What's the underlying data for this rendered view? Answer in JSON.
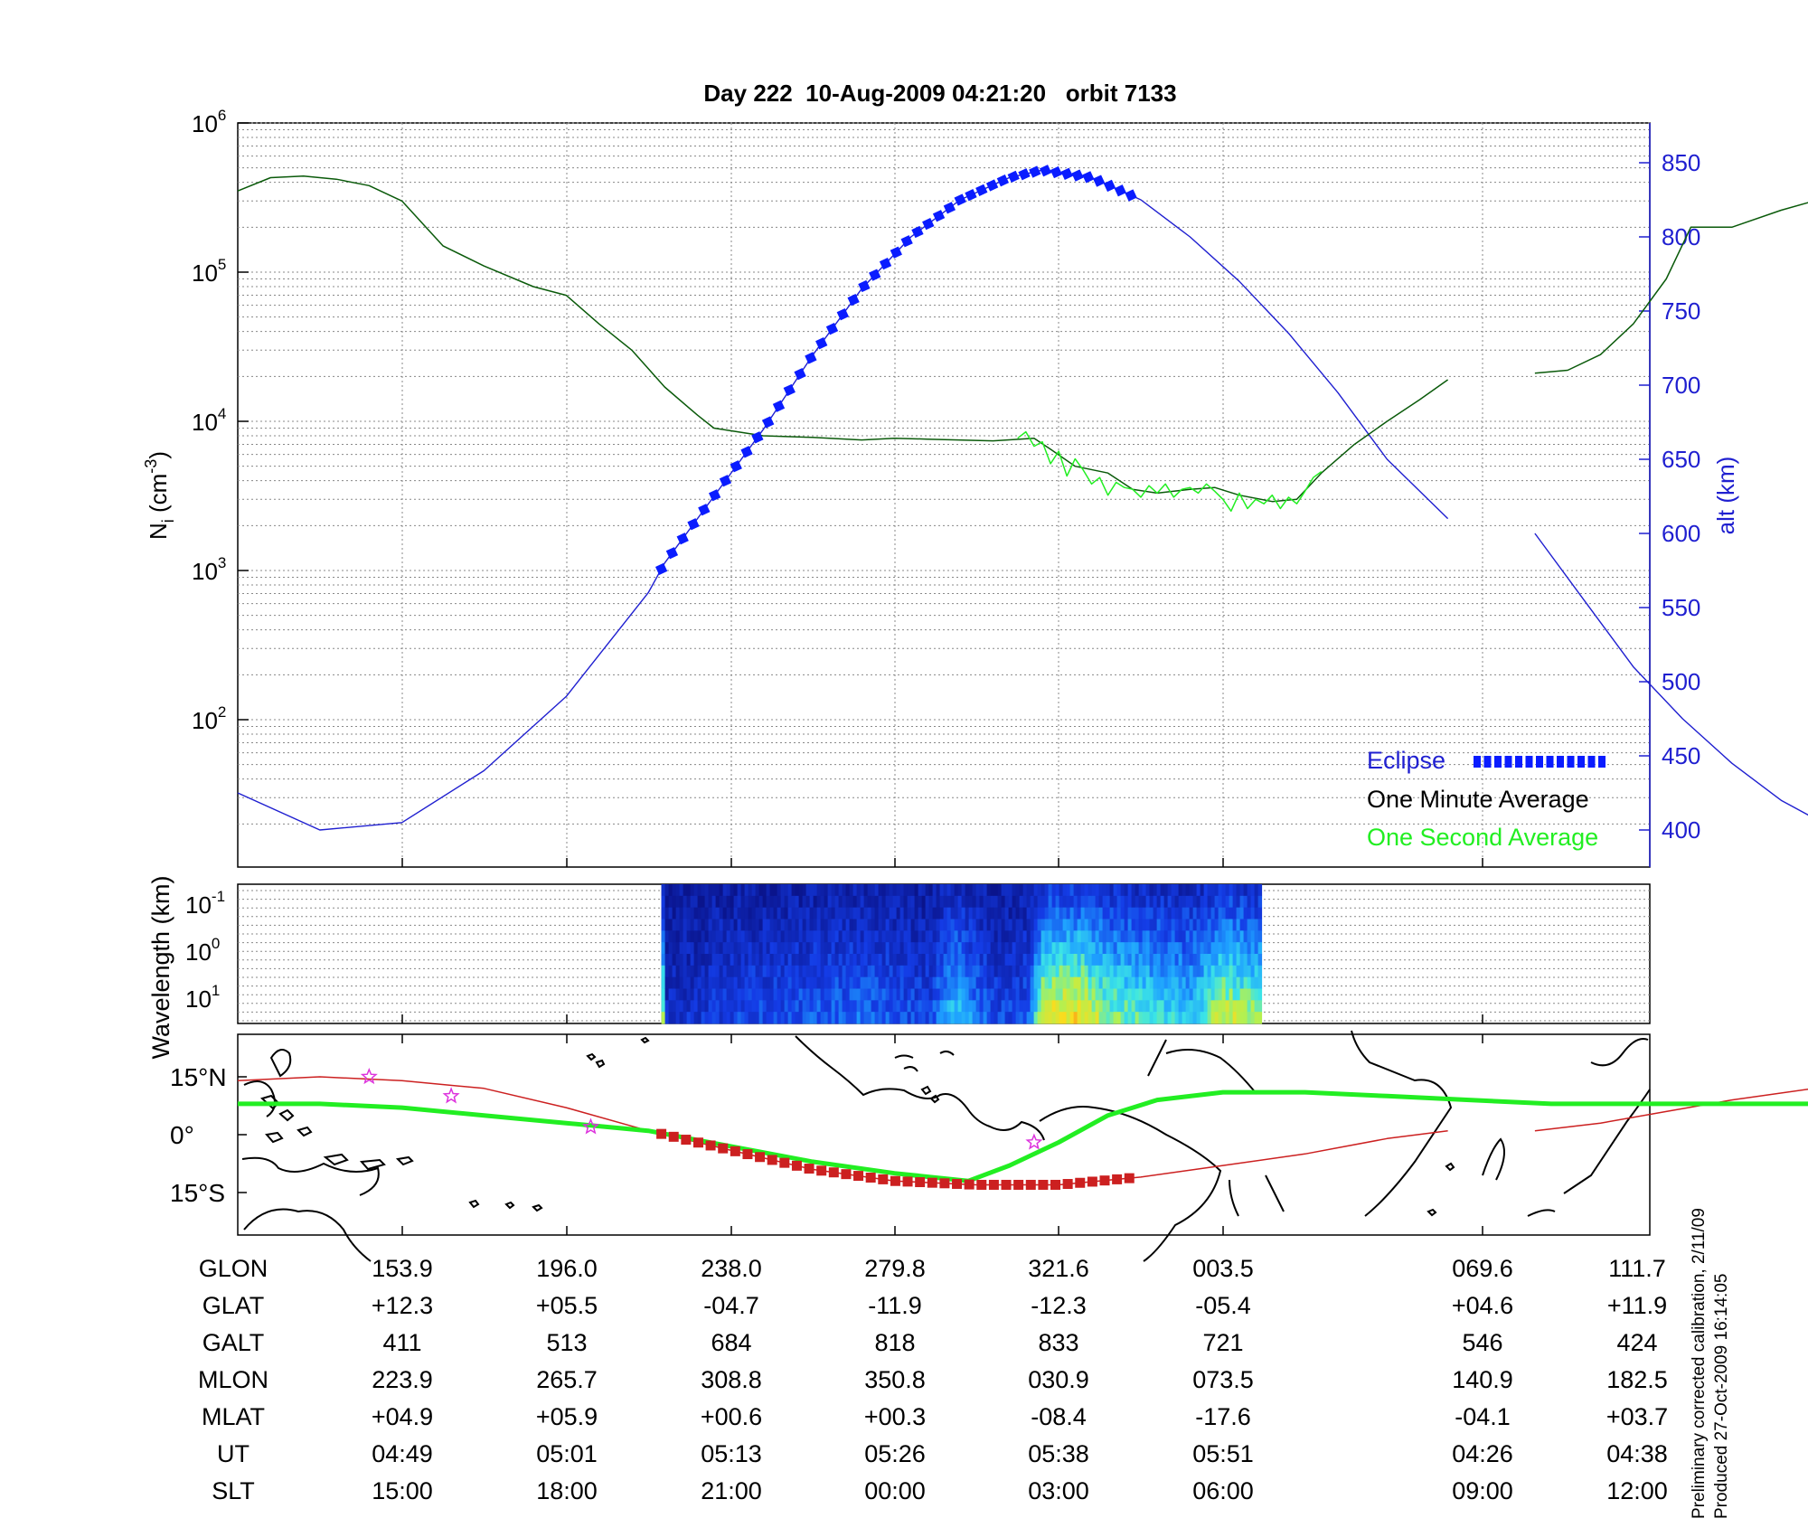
{
  "title": "Day 222  10-Aug-2009 04:21:20   orbit 7133",
  "colors": {
    "altitude": "#1f1fd0",
    "eclipse": "#0a1cff",
    "one_minute": "#0a5a0a",
    "one_second": "#22ee22",
    "orbit_track": "#cc2020",
    "magnetic_equator": "#22ee22",
    "grid": "#888888"
  },
  "chart_data": [
    {
      "type": "line",
      "name": "density-altitude",
      "ylabel": "N",
      "ylabel_sub": "i",
      "ylabel_unit": " (cm",
      "ylabel_exp": "-3",
      "ylabel_close": ")",
      "yscale": "log",
      "ylim": [
        10,
        1000000
      ],
      "yticks_left": [
        {
          "base": "10",
          "exp": "2",
          "value": 100
        },
        {
          "base": "10",
          "exp": "3",
          "value": 1000
        },
        {
          "base": "10",
          "exp": "4",
          "value": 10000
        },
        {
          "base": "10",
          "exp": "5",
          "value": 100000
        },
        {
          "base": "10",
          "exp": "6",
          "value": 1000000
        }
      ],
      "y2label": "alt (km)",
      "y2lim": [
        375,
        875
      ],
      "y2ticks": [
        "400",
        "450",
        "500",
        "550",
        "600",
        "650",
        "700",
        "750",
        "800",
        "850"
      ],
      "grid": true,
      "legend_position": "bottom-right",
      "legend": {
        "eclipse": "Eclipse",
        "one_minute": "One Minute Average",
        "one_second": "One Second Average"
      },
      "series": [
        {
          "name": "One Minute Average",
          "segments": [
            [
              [
                0,
                350000
              ],
              [
                0.2,
                430000
              ],
              [
                0.4,
                440000
              ],
              [
                0.6,
                420000
              ],
              [
                0.8,
                380000
              ],
              [
                1.0,
                300000
              ],
              [
                1.25,
                150000
              ],
              [
                1.5,
                110000
              ],
              [
                1.8,
                80000
              ],
              [
                2.0,
                70000
              ],
              [
                2.2,
                45000
              ],
              [
                2.4,
                30000
              ],
              [
                2.6,
                17000
              ],
              [
                2.8,
                11000
              ],
              [
                2.9,
                9000
              ],
              [
                3.2,
                8000
              ],
              [
                3.5,
                7800
              ],
              [
                3.8,
                7500
              ],
              [
                4.0,
                7700
              ],
              [
                4.2,
                7600
              ],
              [
                4.6,
                7400
              ],
              [
                4.85,
                7700
              ],
              [
                4.95,
                6500
              ],
              [
                5.1,
                5000
              ],
              [
                5.3,
                4500
              ],
              [
                5.45,
                3500
              ],
              [
                5.6,
                3300
              ],
              [
                5.8,
                3500
              ],
              [
                5.95,
                3600
              ],
              [
                6.1,
                3200
              ],
              [
                6.3,
                2900
              ],
              [
                6.45,
                3000
              ],
              [
                6.6,
                4500
              ],
              [
                6.8,
                7000
              ],
              [
                7.0,
                10000
              ],
              [
                7.2,
                14000
              ],
              [
                7.37,
                19000
              ]
            ],
            [
              [
                7.9,
                21000
              ],
              [
                8.1,
                22000
              ],
              [
                8.3,
                28000
              ],
              [
                8.5,
                45000
              ],
              [
                8.7,
                90000
              ],
              [
                8.85,
                200000
              ],
              [
                9.1,
                200000
              ],
              [
                9.4,
                260000
              ],
              [
                9.6,
                300000
              ]
            ]
          ]
        },
        {
          "name": "One Second Average",
          "segments": [
            [
              [
                4.75,
                7700
              ],
              [
                4.8,
                8500
              ],
              [
                4.85,
                6800
              ],
              [
                4.9,
                7300
              ],
              [
                4.95,
                5200
              ],
              [
                5.0,
                6300
              ],
              [
                5.05,
                4300
              ],
              [
                5.1,
                5600
              ],
              [
                5.15,
                4700
              ],
              [
                5.2,
                3800
              ],
              [
                5.25,
                4200
              ],
              [
                5.3,
                3200
              ],
              [
                5.35,
                3900
              ],
              [
                5.4,
                3600
              ],
              [
                5.45,
                3500
              ],
              [
                5.5,
                3100
              ],
              [
                5.55,
                3700
              ],
              [
                5.6,
                3300
              ],
              [
                5.65,
                3800
              ],
              [
                5.7,
                3100
              ],
              [
                5.75,
                3500
              ],
              [
                5.8,
                3600
              ],
              [
                5.85,
                3300
              ],
              [
                5.9,
                3800
              ],
              [
                5.95,
                3400
              ],
              [
                6.0,
                3000
              ],
              [
                6.05,
                2500
              ],
              [
                6.1,
                3300
              ],
              [
                6.15,
                2600
              ],
              [
                6.2,
                3000
              ],
              [
                6.25,
                2800
              ],
              [
                6.3,
                3200
              ],
              [
                6.35,
                2600
              ],
              [
                6.4,
                3100
              ],
              [
                6.45,
                2800
              ],
              [
                6.5,
                3400
              ],
              [
                6.55,
                4200
              ],
              [
                6.6,
                4600
              ]
            ]
          ]
        },
        {
          "name": "Altitude (km)",
          "axis": "right",
          "segments": [
            [
              [
                0,
                425
              ],
              [
                0.5,
                400
              ],
              [
                1.0,
                405
              ],
              [
                1.5,
                440
              ],
              [
                2.0,
                490
              ],
              [
                2.5,
                560
              ],
              [
                2.6,
                580
              ],
              [
                2.9,
                625
              ],
              [
                3.2,
                670
              ],
              [
                3.5,
                720
              ],
              [
                3.8,
                765
              ],
              [
                4.1,
                800
              ],
              [
                4.4,
                825
              ],
              [
                4.7,
                840
              ],
              [
                4.9,
                845
              ],
              [
                5.2,
                840
              ],
              [
                5.5,
                825
              ],
              [
                5.8,
                800
              ],
              [
                6.1,
                770
              ],
              [
                6.4,
                735
              ],
              [
                6.7,
                695
              ],
              [
                7.0,
                650
              ],
              [
                7.37,
                610
              ]
            ],
            [
              [
                7.9,
                600
              ],
              [
                8.2,
                555
              ],
              [
                8.5,
                510
              ],
              [
                8.8,
                475
              ],
              [
                9.1,
                445
              ],
              [
                9.4,
                420
              ],
              [
                9.6,
                408
              ]
            ]
          ]
        },
        {
          "name": "Eclipse",
          "axis": "right",
          "x_range": [
            2.58,
            5.47
          ]
        }
      ],
      "x_categories": [
        "153.9",
        "196.0",
        "238.0",
        "279.8",
        "321.6",
        "003.5",
        "069.6",
        "111.7"
      ]
    },
    {
      "type": "heatmap",
      "name": "wavelength-spectrogram",
      "ylabel": "Wavelength (km)",
      "yscale": "log",
      "yticks": [
        {
          "base": "10",
          "exp": "-1"
        },
        {
          "base": "10",
          "exp": "0"
        },
        {
          "base": "10",
          "exp": "1"
        }
      ],
      "x_range": [
        2.58,
        6.23
      ],
      "colormap": "jet",
      "intensity_profile": [
        [
          2.6,
          0.15
        ],
        [
          3.0,
          0.25
        ],
        [
          3.4,
          0.3
        ],
        [
          3.8,
          0.35
        ],
        [
          4.2,
          0.25
        ],
        [
          4.35,
          0.55
        ],
        [
          4.6,
          0.25
        ],
        [
          4.8,
          0.3
        ],
        [
          4.9,
          0.85
        ],
        [
          5.1,
          0.9
        ],
        [
          5.3,
          0.7
        ],
        [
          5.6,
          0.6
        ],
        [
          5.8,
          0.55
        ],
        [
          6.0,
          0.8
        ],
        [
          6.2,
          0.7
        ]
      ]
    },
    {
      "type": "map",
      "name": "ground-track",
      "yticks": [
        "15°N",
        "0°",
        "15°S"
      ],
      "track": [
        [
          0,
          14
        ],
        [
          0.5,
          15
        ],
        [
          1.0,
          14
        ],
        [
          1.5,
          12
        ],
        [
          2.0,
          7
        ],
        [
          2.5,
          1
        ],
        [
          3.0,
          -4
        ],
        [
          3.5,
          -9
        ],
        [
          4.0,
          -12
        ],
        [
          4.5,
          -13
        ],
        [
          5.0,
          -13
        ],
        [
          5.5,
          -11
        ],
        [
          6.0,
          -8
        ],
        [
          6.5,
          -5
        ],
        [
          7.0,
          -1
        ],
        [
          7.37,
          1
        ]
      ],
      "track2": [
        [
          7.9,
          1
        ],
        [
          8.3,
          3
        ],
        [
          8.7,
          6
        ],
        [
          9.1,
          9
        ],
        [
          9.6,
          12
        ]
      ],
      "eclipse_x_range": [
        2.58,
        5.47
      ],
      "magnetic_equator": [
        [
          0,
          8
        ],
        [
          0.5,
          8
        ],
        [
          1.0,
          7
        ],
        [
          1.5,
          5
        ],
        [
          2.0,
          3
        ],
        [
          2.5,
          1
        ],
        [
          3.0,
          -3
        ],
        [
          3.5,
          -7
        ],
        [
          4.0,
          -10
        ],
        [
          4.45,
          -12
        ],
        [
          4.7,
          -8
        ],
        [
          5.0,
          -2
        ],
        [
          5.3,
          5
        ],
        [
          5.6,
          9
        ],
        [
          6.0,
          11
        ],
        [
          6.5,
          11
        ],
        [
          7.0,
          10
        ],
        [
          7.5,
          9
        ],
        [
          8.0,
          8
        ],
        [
          8.5,
          8
        ],
        [
          9.0,
          8
        ],
        [
          9.6,
          8
        ]
      ],
      "stars": [
        [
          0.8,
          15
        ],
        [
          1.3,
          10
        ],
        [
          2.15,
          2
        ],
        [
          4.85,
          -2
        ]
      ]
    }
  ],
  "table": {
    "row_labels": [
      "GLON",
      "GLAT",
      "GALT",
      "MLON",
      "MLAT",
      "UT",
      "SLT"
    ],
    "columns": [
      [
        "153.9",
        "+12.3",
        "411",
        "223.9",
        "+04.9",
        "04:49",
        "15:00"
      ],
      [
        "196.0",
        "+05.5",
        "513",
        "265.7",
        "+05.9",
        "05:01",
        "18:00"
      ],
      [
        "238.0",
        "-04.7",
        "684",
        "308.8",
        "+00.6",
        "05:13",
        "21:00"
      ],
      [
        "279.8",
        "-11.9",
        "818",
        "350.8",
        "+00.3",
        "05:26",
        "00:00"
      ],
      [
        "321.6",
        "-12.3",
        "833",
        "030.9",
        "-08.4",
        "05:38",
        "03:00"
      ],
      [
        "003.5",
        "-05.4",
        "721",
        "073.5",
        "-17.6",
        "05:51",
        "06:00"
      ],
      [
        "069.6",
        "+04.6",
        "546",
        "140.9",
        "-04.1",
        "04:26",
        "09:00"
      ],
      [
        "111.7",
        "+11.9",
        "424",
        "182.5",
        "+03.7",
        "04:38",
        "12:00"
      ]
    ]
  },
  "footnote": {
    "line1": "Preliminary corrected calibration, 2/11/09",
    "line2": "Produced 27-Oct-2009 16:14:05"
  }
}
